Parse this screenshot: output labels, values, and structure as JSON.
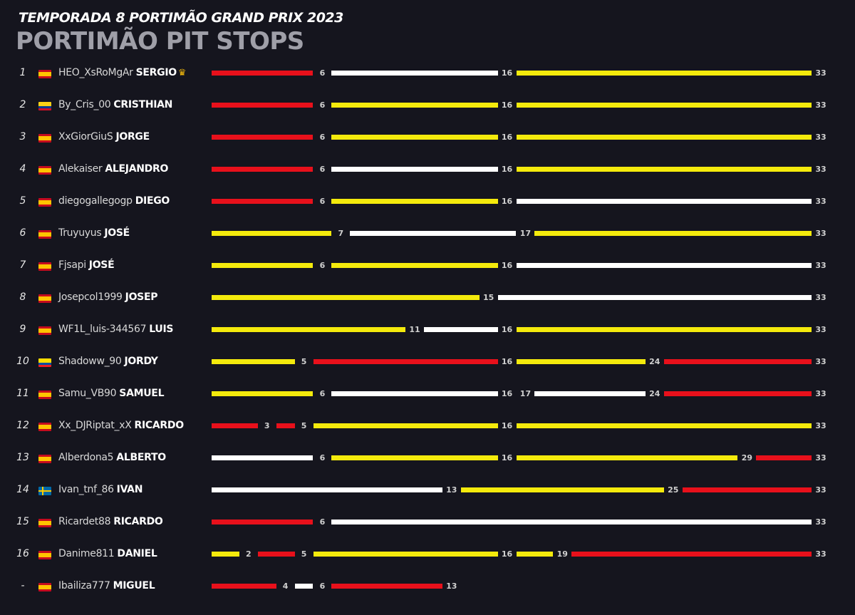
{
  "header": {
    "title": "TEMPORADA 8  PORTIMÃO GRAND PRIX 2023",
    "subtitle": "PORTIMÃO PIT STOPS"
  },
  "colors": {
    "soft": "#e8101b",
    "medium": "#f4ea0c",
    "hard": "#ffffff",
    "background": "#15151e"
  },
  "chart_data": {
    "type": "bar",
    "total_laps": 33,
    "rows": [
      {
        "pos": "1",
        "flag": "es",
        "user": "HEO_XsRoMgAr",
        "name": "SERGIO",
        "crown": true,
        "crown_icon": "crown-icon",
        "stints": [
          {
            "compound": "soft",
            "end": 6
          },
          {
            "compound": "hard",
            "end": 16
          },
          {
            "compound": "medium",
            "end": 33
          }
        ]
      },
      {
        "pos": "2",
        "flag": "co",
        "user": "By_Cris_00",
        "name": "CRISTHIAN",
        "stints": [
          {
            "compound": "soft",
            "end": 6
          },
          {
            "compound": "medium",
            "end": 16
          },
          {
            "compound": "medium",
            "end": 33
          }
        ]
      },
      {
        "pos": "3",
        "flag": "es",
        "user": "XxGiorGiuS",
        "name": "JORGE",
        "stints": [
          {
            "compound": "soft",
            "end": 6
          },
          {
            "compound": "medium",
            "end": 16
          },
          {
            "compound": "medium",
            "end": 33
          }
        ]
      },
      {
        "pos": "4",
        "flag": "es",
        "user": "Alekaiser",
        "name": "ALEJANDRO",
        "stints": [
          {
            "compound": "soft",
            "end": 6
          },
          {
            "compound": "hard",
            "end": 16
          },
          {
            "compound": "medium",
            "end": 33
          }
        ]
      },
      {
        "pos": "5",
        "flag": "es",
        "user": "diegogallegogp",
        "name": "DIEGO",
        "stints": [
          {
            "compound": "soft",
            "end": 6
          },
          {
            "compound": "medium",
            "end": 16
          },
          {
            "compound": "hard",
            "end": 33
          }
        ]
      },
      {
        "pos": "6",
        "flag": "es",
        "user": "Truyuyus",
        "name": "JOSÉ",
        "stints": [
          {
            "compound": "medium",
            "end": 7
          },
          {
            "compound": "hard",
            "end": 17
          },
          {
            "compound": "medium",
            "end": 33
          }
        ]
      },
      {
        "pos": "7",
        "flag": "es",
        "user": "Fjsapi",
        "name": "JOSÉ",
        "stints": [
          {
            "compound": "medium",
            "end": 6
          },
          {
            "compound": "medium",
            "end": 16
          },
          {
            "compound": "hard",
            "end": 33
          }
        ]
      },
      {
        "pos": "8",
        "flag": "es",
        "user": "Josepcol1999",
        "name": "JOSEP",
        "stints": [
          {
            "compound": "medium",
            "end": 15
          },
          {
            "compound": "hard",
            "end": 33
          }
        ]
      },
      {
        "pos": "9",
        "flag": "es",
        "user": "WF1L_luis-344567",
        "name": "LUIS",
        "stints": [
          {
            "compound": "medium",
            "end": 11
          },
          {
            "compound": "hard",
            "end": 16
          },
          {
            "compound": "medium",
            "end": 33
          }
        ]
      },
      {
        "pos": "10",
        "flag": "ec",
        "user": "Shadoww_90",
        "name": "JORDY",
        "stints": [
          {
            "compound": "medium",
            "end": 5
          },
          {
            "compound": "soft",
            "end": 16
          },
          {
            "compound": "medium",
            "end": 24
          },
          {
            "compound": "soft",
            "end": 33
          }
        ]
      },
      {
        "pos": "11",
        "flag": "es",
        "user": "Samu_VB90",
        "name": "SAMUEL",
        "stints": [
          {
            "compound": "medium",
            "end": 6
          },
          {
            "compound": "hard",
            "end": 16
          },
          {
            "compound": "hard",
            "end": 17
          },
          {
            "compound": "hard",
            "end": 24
          },
          {
            "compound": "soft",
            "end": 33
          }
        ]
      },
      {
        "pos": "12",
        "flag": "es",
        "user": "Xx_DJRiptat_xX",
        "name": "RICARDO",
        "stints": [
          {
            "compound": "soft",
            "end": 3
          },
          {
            "compound": "soft",
            "end": 5
          },
          {
            "compound": "medium",
            "end": 16
          },
          {
            "compound": "medium",
            "end": 33
          }
        ]
      },
      {
        "pos": "13",
        "flag": "es",
        "user": "Alberdona5",
        "name": "ALBERTO",
        "stints": [
          {
            "compound": "hard",
            "end": 6
          },
          {
            "compound": "medium",
            "end": 16
          },
          {
            "compound": "medium",
            "end": 29
          },
          {
            "compound": "soft",
            "end": 33
          }
        ]
      },
      {
        "pos": "14",
        "flag": "se",
        "user": "Ivan_tnf_86",
        "name": "IVAN",
        "stints": [
          {
            "compound": "hard",
            "end": 13
          },
          {
            "compound": "medium",
            "end": 25
          },
          {
            "compound": "soft",
            "end": 33
          }
        ]
      },
      {
        "pos": "15",
        "flag": "es",
        "user": "Ricardet88",
        "name": "RICARDO",
        "stints": [
          {
            "compound": "soft",
            "end": 6
          },
          {
            "compound": "hard",
            "end": 33
          }
        ]
      },
      {
        "pos": "16",
        "flag": "es",
        "user": "Danime811",
        "name": "DANIEL",
        "stints": [
          {
            "compound": "medium",
            "end": 2
          },
          {
            "compound": "soft",
            "end": 5
          },
          {
            "compound": "medium",
            "end": 16
          },
          {
            "compound": "medium",
            "end": 19
          },
          {
            "compound": "soft",
            "end": 33
          }
        ]
      },
      {
        "pos": "-",
        "flag": "es",
        "user": "Ibailiza777",
        "name": "MIGUEL",
        "stints": [
          {
            "compound": "soft",
            "end": 4
          },
          {
            "compound": "hard",
            "end": 6
          },
          {
            "compound": "soft",
            "end": 13
          }
        ]
      }
    ]
  }
}
